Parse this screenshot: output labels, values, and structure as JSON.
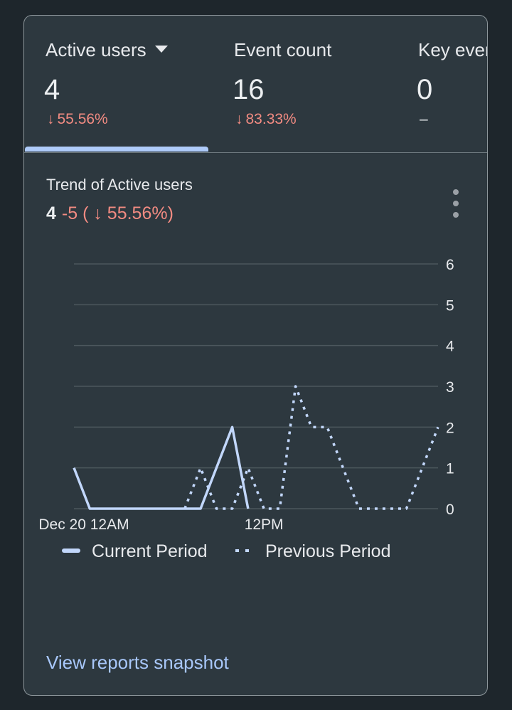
{
  "metrics": [
    {
      "label": "Active users",
      "value": "4",
      "change": "55.56%",
      "direction": "down",
      "has_dropdown": true
    },
    {
      "label": "Event count",
      "value": "16",
      "change": "83.33%",
      "direction": "down",
      "has_dropdown": false
    },
    {
      "label": "Key events",
      "value": "0",
      "change": "–",
      "direction": "none",
      "has_dropdown": false
    }
  ],
  "trend": {
    "title": "Trend of Active users",
    "value": "4",
    "delta": "-5 ( ↓ 55.56%)"
  },
  "chart_data": {
    "type": "line",
    "x_tick_labels": [
      "Dec 20 12AM",
      "12PM"
    ],
    "y_ticks": [
      0,
      1,
      2,
      3,
      4,
      5,
      6
    ],
    "ylim": [
      0,
      6
    ],
    "grid": true,
    "legend_position": "bottom",
    "series": [
      {
        "name": "Current Period",
        "style": "solid",
        "color": "#c2d7fb",
        "x": [
          0,
          1,
          2,
          3,
          4,
          5,
          6,
          7,
          8,
          9,
          10,
          11
        ],
        "values": [
          1,
          0,
          0,
          0,
          0,
          0,
          0,
          0,
          0,
          1,
          2,
          0
        ]
      },
      {
        "name": "Previous Period",
        "style": "dotted",
        "color": "#c2d7fb",
        "x": [
          7,
          8,
          9,
          10,
          11,
          12,
          13,
          14,
          15,
          16,
          17,
          18,
          19,
          20,
          21,
          22,
          23
        ],
        "values": [
          0,
          1,
          0,
          0,
          1,
          0,
          0,
          3,
          2,
          2,
          1,
          0,
          0,
          0,
          0,
          1,
          2
        ]
      }
    ]
  },
  "link": {
    "view_reports": "View reports snapshot"
  },
  "colors": {
    "background": "#1e262c",
    "card": "#2d383f",
    "negative": "#f28b82",
    "accent": "#aecbfa",
    "link": "#a8c7fa"
  }
}
